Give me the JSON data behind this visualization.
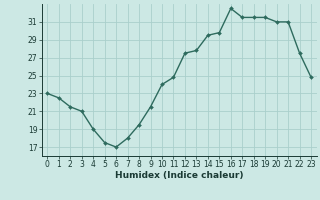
{
  "x": [
    0,
    1,
    2,
    3,
    4,
    5,
    6,
    7,
    8,
    9,
    10,
    11,
    12,
    13,
    14,
    15,
    16,
    17,
    18,
    19,
    20,
    21,
    22,
    23
  ],
  "y": [
    23.0,
    22.5,
    21.5,
    21.0,
    19.0,
    17.5,
    17.0,
    18.0,
    19.5,
    21.5,
    24.0,
    24.8,
    27.5,
    27.8,
    29.5,
    29.8,
    32.5,
    31.5,
    31.5,
    31.5,
    31.0,
    31.0,
    27.5,
    24.8
  ],
  "line_color": "#2e6b5e",
  "marker": "D",
  "marker_size": 2,
  "line_width": 1.0,
  "bg_color": "#cce8e4",
  "grid_color": "#aacfcc",
  "xlabel": "Humidex (Indice chaleur)",
  "ylim": [
    16,
    33
  ],
  "yticks": [
    17,
    19,
    21,
    23,
    25,
    27,
    29,
    31
  ],
  "xticks": [
    0,
    1,
    2,
    3,
    4,
    5,
    6,
    7,
    8,
    9,
    10,
    11,
    12,
    13,
    14,
    15,
    16,
    17,
    18,
    19,
    20,
    21,
    22,
    23
  ],
  "xlabel_fontsize": 6.5,
  "tick_fontsize": 5.5,
  "tick_color": "#1a3a34"
}
